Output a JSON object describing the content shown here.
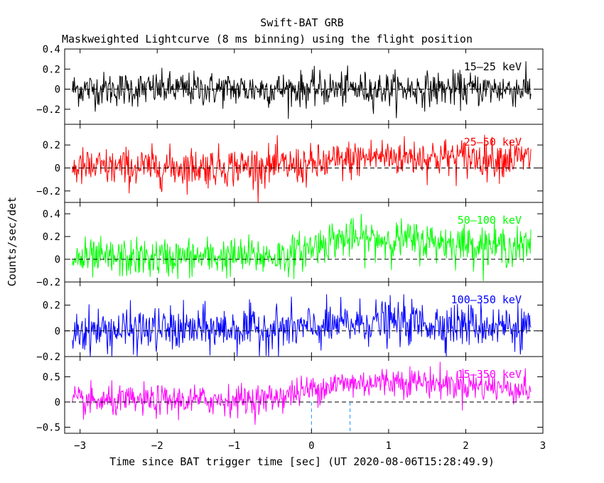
{
  "chart_data": {
    "type": "line",
    "title": "Swift-BAT GRB",
    "subtitle": "Maskweighted Lightcurve (8 ms binning) using the flight position",
    "xlabel": "Time since BAT trigger time [sec] (UT 2020-08-06T15:28:49.9)",
    "ylabel": "Counts/sec/det",
    "xlim": [
      -3.2,
      3.0
    ],
    "x_ticks": [
      "-3",
      "-2",
      "-1",
      "0",
      "1",
      "2",
      "3"
    ],
    "bin_size_sec": 0.008,
    "data_range": [
      -3.1,
      2.85
    ],
    "markers": [
      {
        "x": 0.0,
        "color": "#1e90ff"
      },
      {
        "x": 0.5,
        "color": "#1e90ff"
      }
    ],
    "panels": [
      {
        "label": "15–25 keV",
        "color": "#000000",
        "ylim": [
          -0.35,
          0.4
        ],
        "ticks": [
          "−0.2",
          "0",
          "0.2",
          "0.4"
        ],
        "trend": [
          {
            "t": -3.1,
            "mean": 0.0
          },
          {
            "t": 2.85,
            "mean": 0.0
          }
        ],
        "noise_sd": 0.085
      },
      {
        "label": "25–50 keV",
        "color": "#ff0000",
        "ylim": [
          -0.3,
          0.38
        ],
        "ticks": [
          "−0.2",
          "0",
          "0.2"
        ],
        "trend": [
          {
            "t": -3.1,
            "mean": 0.0
          },
          {
            "t": 0.0,
            "mean": 0.02
          },
          {
            "t": 0.8,
            "mean": 0.1
          },
          {
            "t": 2.85,
            "mean": 0.08
          }
        ],
        "noise_sd": 0.085
      },
      {
        "label": "50–100 keV",
        "color": "#00ff00",
        "ylim": [
          -0.2,
          0.5
        ],
        "ticks": [
          "−0.2",
          "0",
          "0.2",
          "0.4"
        ],
        "trend": [
          {
            "t": -3.1,
            "mean": 0.0
          },
          {
            "t": -0.3,
            "mean": 0.03
          },
          {
            "t": 0.3,
            "mean": 0.18
          },
          {
            "t": 1.2,
            "mean": 0.17
          },
          {
            "t": 2.85,
            "mean": 0.1
          }
        ],
        "noise_sd": 0.085
      },
      {
        "label": "100–350 keV",
        "color": "#0000ff",
        "ylim": [
          -0.2,
          0.38
        ],
        "ticks": [
          "−0.2",
          "0",
          "0.2"
        ],
        "trend": [
          {
            "t": -3.1,
            "mean": 0.0
          },
          {
            "t": 0.0,
            "mean": 0.02
          },
          {
            "t": 0.8,
            "mean": 0.07
          },
          {
            "t": 2.85,
            "mean": 0.03
          }
        ],
        "noise_sd": 0.085
      },
      {
        "label": "15–350 keV",
        "color": "#ff00ff",
        "ylim": [
          -0.62,
          0.9
        ],
        "ticks": [
          "−0.5",
          "0",
          "0.5"
        ],
        "trend": [
          {
            "t": -3.1,
            "mean": 0.0
          },
          {
            "t": -0.6,
            "mean": 0.05
          },
          {
            "t": 0.3,
            "mean": 0.35
          },
          {
            "t": 1.2,
            "mean": 0.42
          },
          {
            "t": 2.85,
            "mean": 0.25
          }
        ],
        "noise_sd": 0.15
      }
    ]
  }
}
